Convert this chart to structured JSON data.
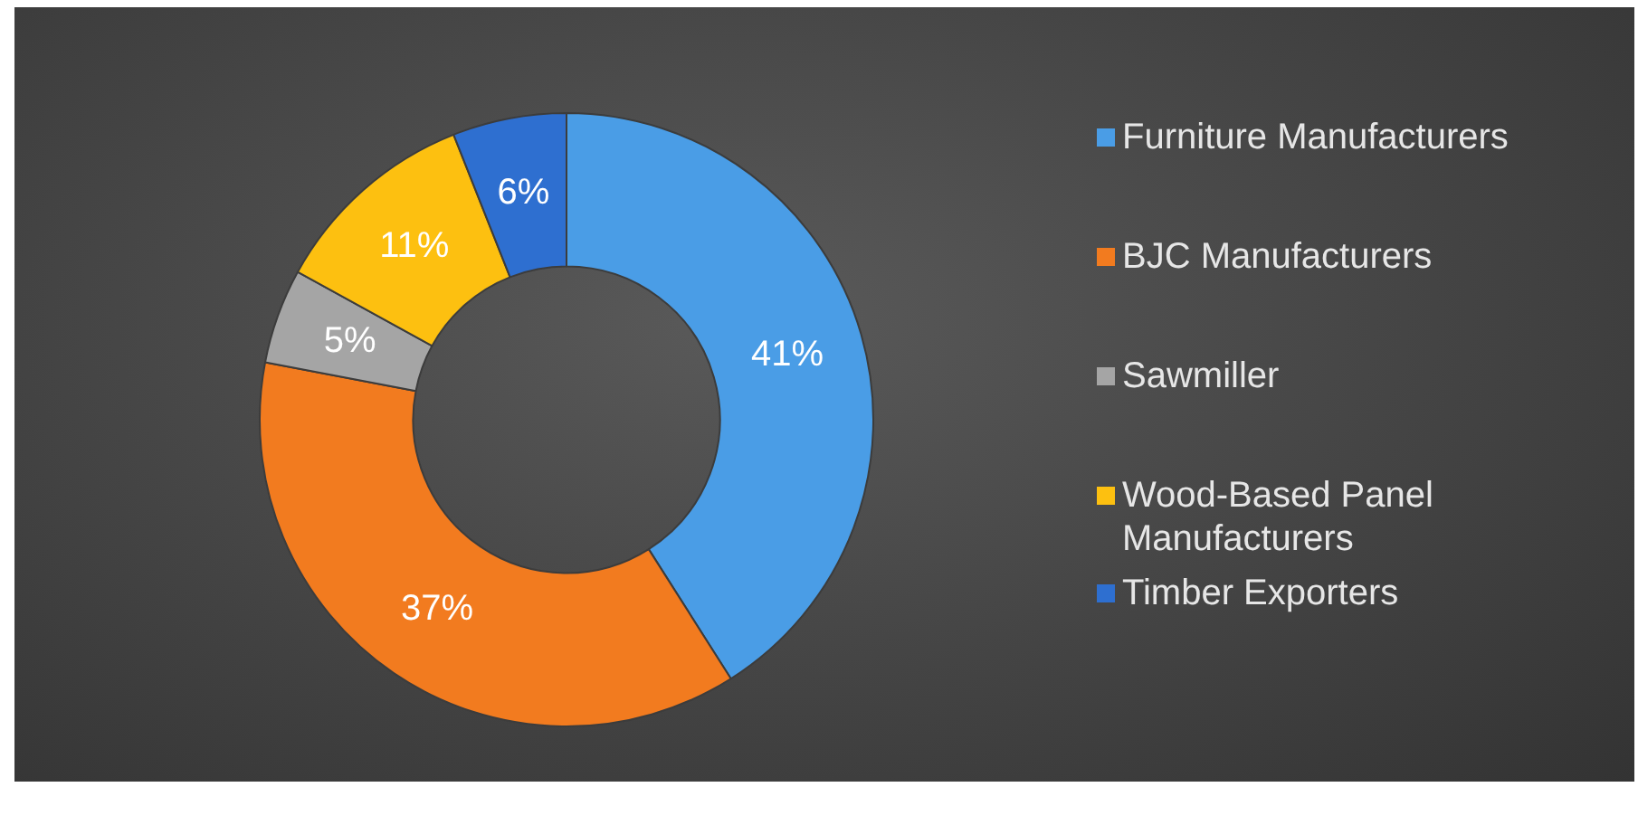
{
  "chart_data": {
    "type": "donut",
    "categories": [
      "Furniture Manufacturers",
      "BJC Manufacturers",
      "Sawmiller",
      "Wood-Based Panel Manufacturers",
      "Timber Exporters"
    ],
    "values": [
      41,
      37,
      5,
      11,
      6
    ],
    "value_labels": [
      "41%",
      "37%",
      "5%",
      "11%",
      "6%"
    ],
    "colors": [
      "#4a9de6",
      "#f27b1f",
      "#a5a5a5",
      "#fdc010",
      "#2e6fd0"
    ],
    "legend": "right"
  }
}
